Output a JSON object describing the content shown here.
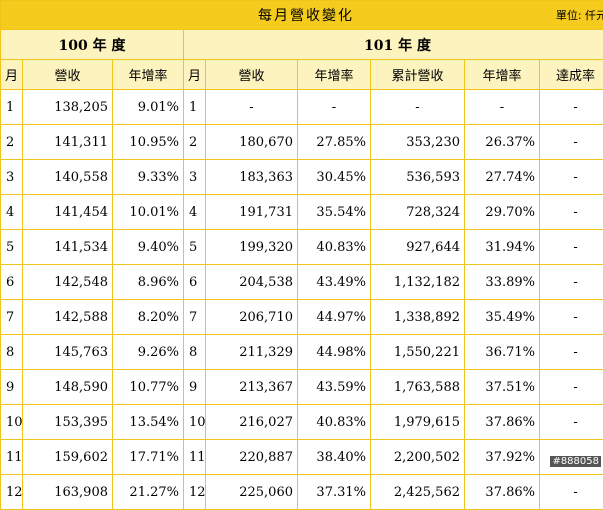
{
  "header": {
    "title": "每月營收變化",
    "unit": "單位: 仟元"
  },
  "years": {
    "left": "100 年 度",
    "right": "101 年 度"
  },
  "columns": {
    "month": "月",
    "revenue": "營收",
    "yoy": "年增率",
    "cumulative": "累計營收",
    "achievement": "達成率"
  },
  "rows": [
    {
      "m100": "1",
      "rev100": "138,205",
      "yoy100": "9.01%",
      "m101": "1",
      "rev101": "-",
      "yoy101": "-",
      "cum101": "-",
      "cumYoy101": "-",
      "ach101": "-"
    },
    {
      "m100": "2",
      "rev100": "141,311",
      "yoy100": "10.95%",
      "m101": "2",
      "rev101": "180,670",
      "yoy101": "27.85%",
      "cum101": "353,230",
      "cumYoy101": "26.37%",
      "ach101": "-"
    },
    {
      "m100": "3",
      "rev100": "140,558",
      "yoy100": "9.33%",
      "m101": "3",
      "rev101": "183,363",
      "yoy101": "30.45%",
      "cum101": "536,593",
      "cumYoy101": "27.74%",
      "ach101": "-"
    },
    {
      "m100": "4",
      "rev100": "141,454",
      "yoy100": "10.01%",
      "m101": "4",
      "rev101": "191,731",
      "yoy101": "35.54%",
      "cum101": "728,324",
      "cumYoy101": "29.70%",
      "ach101": "-"
    },
    {
      "m100": "5",
      "rev100": "141,534",
      "yoy100": "9.40%",
      "m101": "5",
      "rev101": "199,320",
      "yoy101": "40.83%",
      "cum101": "927,644",
      "cumYoy101": "31.94%",
      "ach101": "-"
    },
    {
      "m100": "6",
      "rev100": "142,548",
      "yoy100": "8.96%",
      "m101": "6",
      "rev101": "204,538",
      "yoy101": "43.49%",
      "cum101": "1,132,182",
      "cumYoy101": "33.89%",
      "ach101": "-"
    },
    {
      "m100": "7",
      "rev100": "142,588",
      "yoy100": "8.20%",
      "m101": "7",
      "rev101": "206,710",
      "yoy101": "44.97%",
      "cum101": "1,338,892",
      "cumYoy101": "35.49%",
      "ach101": "-"
    },
    {
      "m100": "8",
      "rev100": "145,763",
      "yoy100": "9.26%",
      "m101": "8",
      "rev101": "211,329",
      "yoy101": "44.98%",
      "cum101": "1,550,221",
      "cumYoy101": "36.71%",
      "ach101": "-"
    },
    {
      "m100": "9",
      "rev100": "148,590",
      "yoy100": "10.77%",
      "m101": "9",
      "rev101": "213,367",
      "yoy101": "43.59%",
      "cum101": "1,763,588",
      "cumYoy101": "37.51%",
      "ach101": "-"
    },
    {
      "m100": "10",
      "rev100": "153,395",
      "yoy100": "13.54%",
      "m101": "10",
      "rev101": "216,027",
      "yoy101": "40.83%",
      "cum101": "1,979,615",
      "cumYoy101": "37.86%",
      "ach101": "-"
    },
    {
      "m100": "11",
      "rev100": "159,602",
      "yoy100": "17.71%",
      "m101": "11",
      "rev101": "220,887",
      "yoy101": "38.40%",
      "cum101": "2,200,502",
      "cumYoy101": "37.92%",
      "ach101": "-"
    },
    {
      "m100": "12",
      "rev100": "163,908",
      "yoy100": "21.27%",
      "m101": "12",
      "rev101": "225,060",
      "yoy101": "37.31%",
      "cum101": "2,425,562",
      "cumYoy101": "37.86%",
      "ach101": "-"
    }
  ],
  "watermark": "#888058"
}
